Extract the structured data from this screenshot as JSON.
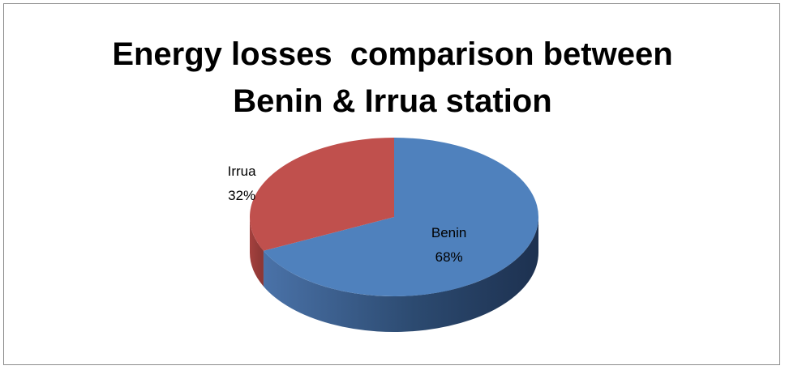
{
  "chart_data": {
    "type": "pie",
    "title": "Energy losses  comparison between Benin & Irrua station",
    "categories": [
      "Benin",
      "Irrua"
    ],
    "values": [
      68,
      32
    ],
    "value_labels": [
      "68%",
      "32%"
    ],
    "colors": [
      "#4f81bd",
      "#c0504d"
    ],
    "side_colors": [
      "#2c4a70",
      "#8a3634"
    ]
  }
}
